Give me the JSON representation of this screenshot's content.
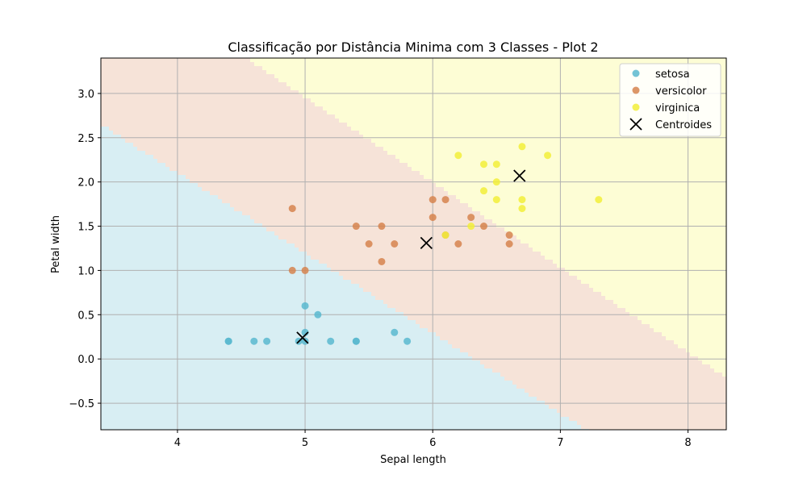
{
  "chart_data": {
    "type": "scatter",
    "title": "Classificação por Distância Minima com 3 Classes - Plot 2",
    "xlabel": "Sepal length",
    "ylabel": "Petal width",
    "xlim": [
      3.4,
      8.3
    ],
    "ylim": [
      -0.8,
      3.4
    ],
    "xticks": [
      4,
      5,
      6,
      7,
      8
    ],
    "yticks": [
      -0.5,
      0.0,
      0.5,
      1.0,
      1.5,
      2.0,
      2.5,
      3.0
    ],
    "xtick_labels": [
      "4",
      "5",
      "6",
      "7",
      "8"
    ],
    "ytick_labels": [
      "−0.5",
      "0.0",
      "0.5",
      "1.0",
      "1.5",
      "2.0",
      "2.5",
      "3.0"
    ],
    "grid": true,
    "legend_position": "top-right",
    "decision_regions": true,
    "series": [
      {
        "name": "setosa",
        "color": "#5bb8cf",
        "region_color": "#d8eef3",
        "points": [
          [
            4.4,
            0.2
          ],
          [
            4.4,
            0.2
          ],
          [
            4.6,
            0.2
          ],
          [
            4.7,
            0.2
          ],
          [
            5.0,
            0.2
          ],
          [
            5.0,
            0.3
          ],
          [
            4.95,
            0.2
          ],
          [
            5.0,
            0.6
          ],
          [
            5.1,
            0.5
          ],
          [
            5.2,
            0.2
          ],
          [
            5.4,
            0.2
          ],
          [
            5.4,
            0.2
          ],
          [
            5.7,
            0.3
          ],
          [
            5.8,
            0.2
          ]
        ]
      },
      {
        "name": "versicolor",
        "color": "#d6844f",
        "region_color": "#f6e3d8",
        "points": [
          [
            4.9,
            1.7
          ],
          [
            4.9,
            1.0
          ],
          [
            5.0,
            1.0
          ],
          [
            5.4,
            1.5
          ],
          [
            5.5,
            1.3
          ],
          [
            5.6,
            1.5
          ],
          [
            5.6,
            1.1
          ],
          [
            5.7,
            1.3
          ],
          [
            6.0,
            1.8
          ],
          [
            6.0,
            1.6
          ],
          [
            6.1,
            1.8
          ],
          [
            6.1,
            1.4
          ],
          [
            6.2,
            1.3
          ],
          [
            6.3,
            1.6
          ],
          [
            6.4,
            1.5
          ],
          [
            6.6,
            1.4
          ],
          [
            6.6,
            1.3
          ]
        ]
      },
      {
        "name": "virginica",
        "color": "#f2ee3a",
        "region_color": "#fdfdd5",
        "points": [
          [
            6.1,
            1.4
          ],
          [
            6.2,
            2.3
          ],
          [
            6.3,
            1.5
          ],
          [
            6.4,
            2.2
          ],
          [
            6.4,
            1.9
          ],
          [
            6.5,
            2.2
          ],
          [
            6.5,
            2.0
          ],
          [
            6.5,
            1.8
          ],
          [
            6.7,
            2.4
          ],
          [
            6.7,
            1.8
          ],
          [
            6.7,
            1.7
          ],
          [
            6.9,
            2.3
          ],
          [
            7.3,
            1.8
          ]
        ]
      }
    ],
    "centroids": {
      "name": "Centroides",
      "marker": "x",
      "color": "#000000",
      "points": [
        [
          4.98,
          0.24
        ],
        [
          5.95,
          1.31
        ],
        [
          6.68,
          2.07
        ]
      ]
    }
  }
}
